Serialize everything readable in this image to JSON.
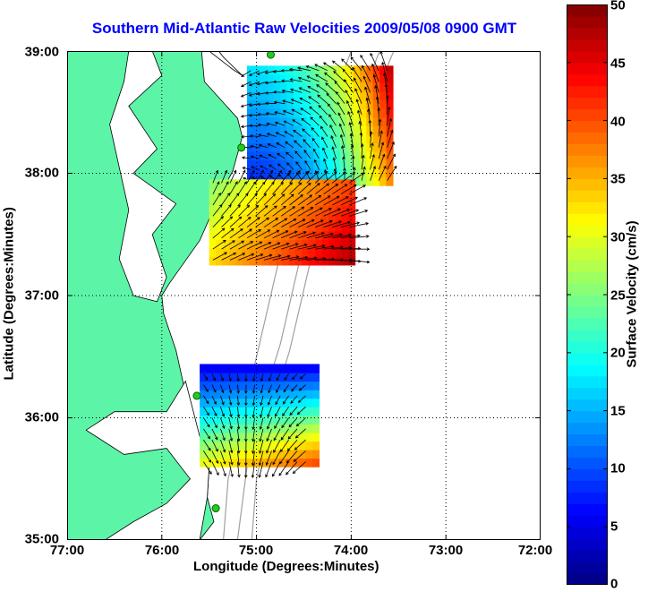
{
  "title": "Southern Mid-Atlantic Raw Velocities 2009/05/08 0900 GMT",
  "xaxis": {
    "label": "Longitude (Degrees:Minutes)",
    "ticks": [
      "77:00",
      "76:00",
      "75:00",
      "74:00",
      "73:00",
      "72:00"
    ]
  },
  "yaxis": {
    "label": "Latitude (Degrees:Minutes)",
    "ticks": [
      "39:00",
      "38:00",
      "37:00",
      "36:00",
      "35:00"
    ]
  },
  "colorbar": {
    "label": "Surface Velocity (cm/s)",
    "ticks": [
      "50",
      "45",
      "40",
      "35",
      "30",
      "25",
      "20",
      "15",
      "10",
      "5",
      "0"
    ],
    "min": 0,
    "max": 50
  },
  "colors": {
    "title": "#0000ff",
    "land": "#5cf5a8",
    "water": "#ffffff",
    "bathymetry": "#a0a0a0",
    "grid": "#000000",
    "station": "#22cc22"
  },
  "map_extent": {
    "lon": [
      -77,
      -72
    ],
    "lat": [
      35,
      39
    ]
  },
  "stations": [
    {
      "lon": -74.85,
      "lat": 38.97
    },
    {
      "lon": -75.16,
      "lat": 38.21
    },
    {
      "lon": -75.63,
      "lat": 36.18
    },
    {
      "lon": -75.43,
      "lat": 35.26
    }
  ],
  "velocity_regions": [
    {
      "name": "north",
      "lon": [
        -75.1,
        -73.6
      ],
      "lat": [
        37.9,
        38.85
      ]
    },
    {
      "name": "central",
      "lon": [
        -75.5,
        -74.0
      ],
      "lat": [
        37.25,
        37.95
      ]
    },
    {
      "name": "south",
      "lon": [
        -75.6,
        -74.4
      ],
      "lat": [
        35.6,
        36.4
      ]
    }
  ]
}
